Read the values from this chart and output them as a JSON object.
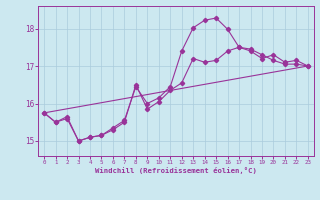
{
  "xlabel": "Windchill (Refroidissement éolien,°C)",
  "background_color": "#cce8f0",
  "grid_color": "#aaccdd",
  "line_color": "#993399",
  "xlim": [
    -0.5,
    23.5
  ],
  "ylim": [
    14.6,
    18.6
  ],
  "yticks": [
    15,
    16,
    17,
    18
  ],
  "xticks": [
    0,
    1,
    2,
    3,
    4,
    5,
    6,
    7,
    8,
    9,
    10,
    11,
    12,
    13,
    14,
    15,
    16,
    17,
    18,
    19,
    20,
    21,
    22,
    23
  ],
  "curve1_x": [
    0,
    1,
    2,
    3,
    4,
    5,
    6,
    7,
    8,
    9,
    10,
    11,
    12,
    13,
    14,
    15,
    16,
    17,
    18,
    19,
    20,
    21,
    22,
    23
  ],
  "curve1_y": [
    15.75,
    15.5,
    15.6,
    15.0,
    15.1,
    15.15,
    15.3,
    15.5,
    16.5,
    15.85,
    16.05,
    16.35,
    16.55,
    17.2,
    17.1,
    17.15,
    17.4,
    17.5,
    17.4,
    17.2,
    17.3,
    17.1,
    17.15,
    17.0
  ],
  "curve2_x": [
    0,
    1,
    2,
    3,
    4,
    5,
    6,
    7,
    8,
    9,
    10,
    11,
    12,
    13,
    14,
    15,
    16,
    17,
    18,
    19,
    20,
    21,
    22,
    23
  ],
  "curve2_y": [
    15.75,
    15.5,
    15.65,
    15.0,
    15.1,
    15.15,
    15.35,
    15.55,
    16.45,
    16.0,
    16.15,
    16.45,
    17.4,
    18.02,
    18.22,
    18.28,
    17.98,
    17.5,
    17.45,
    17.3,
    17.15,
    17.05,
    17.05,
    17.0
  ],
  "curve3_x": [
    0,
    23
  ],
  "curve3_y": [
    15.75,
    17.0
  ]
}
